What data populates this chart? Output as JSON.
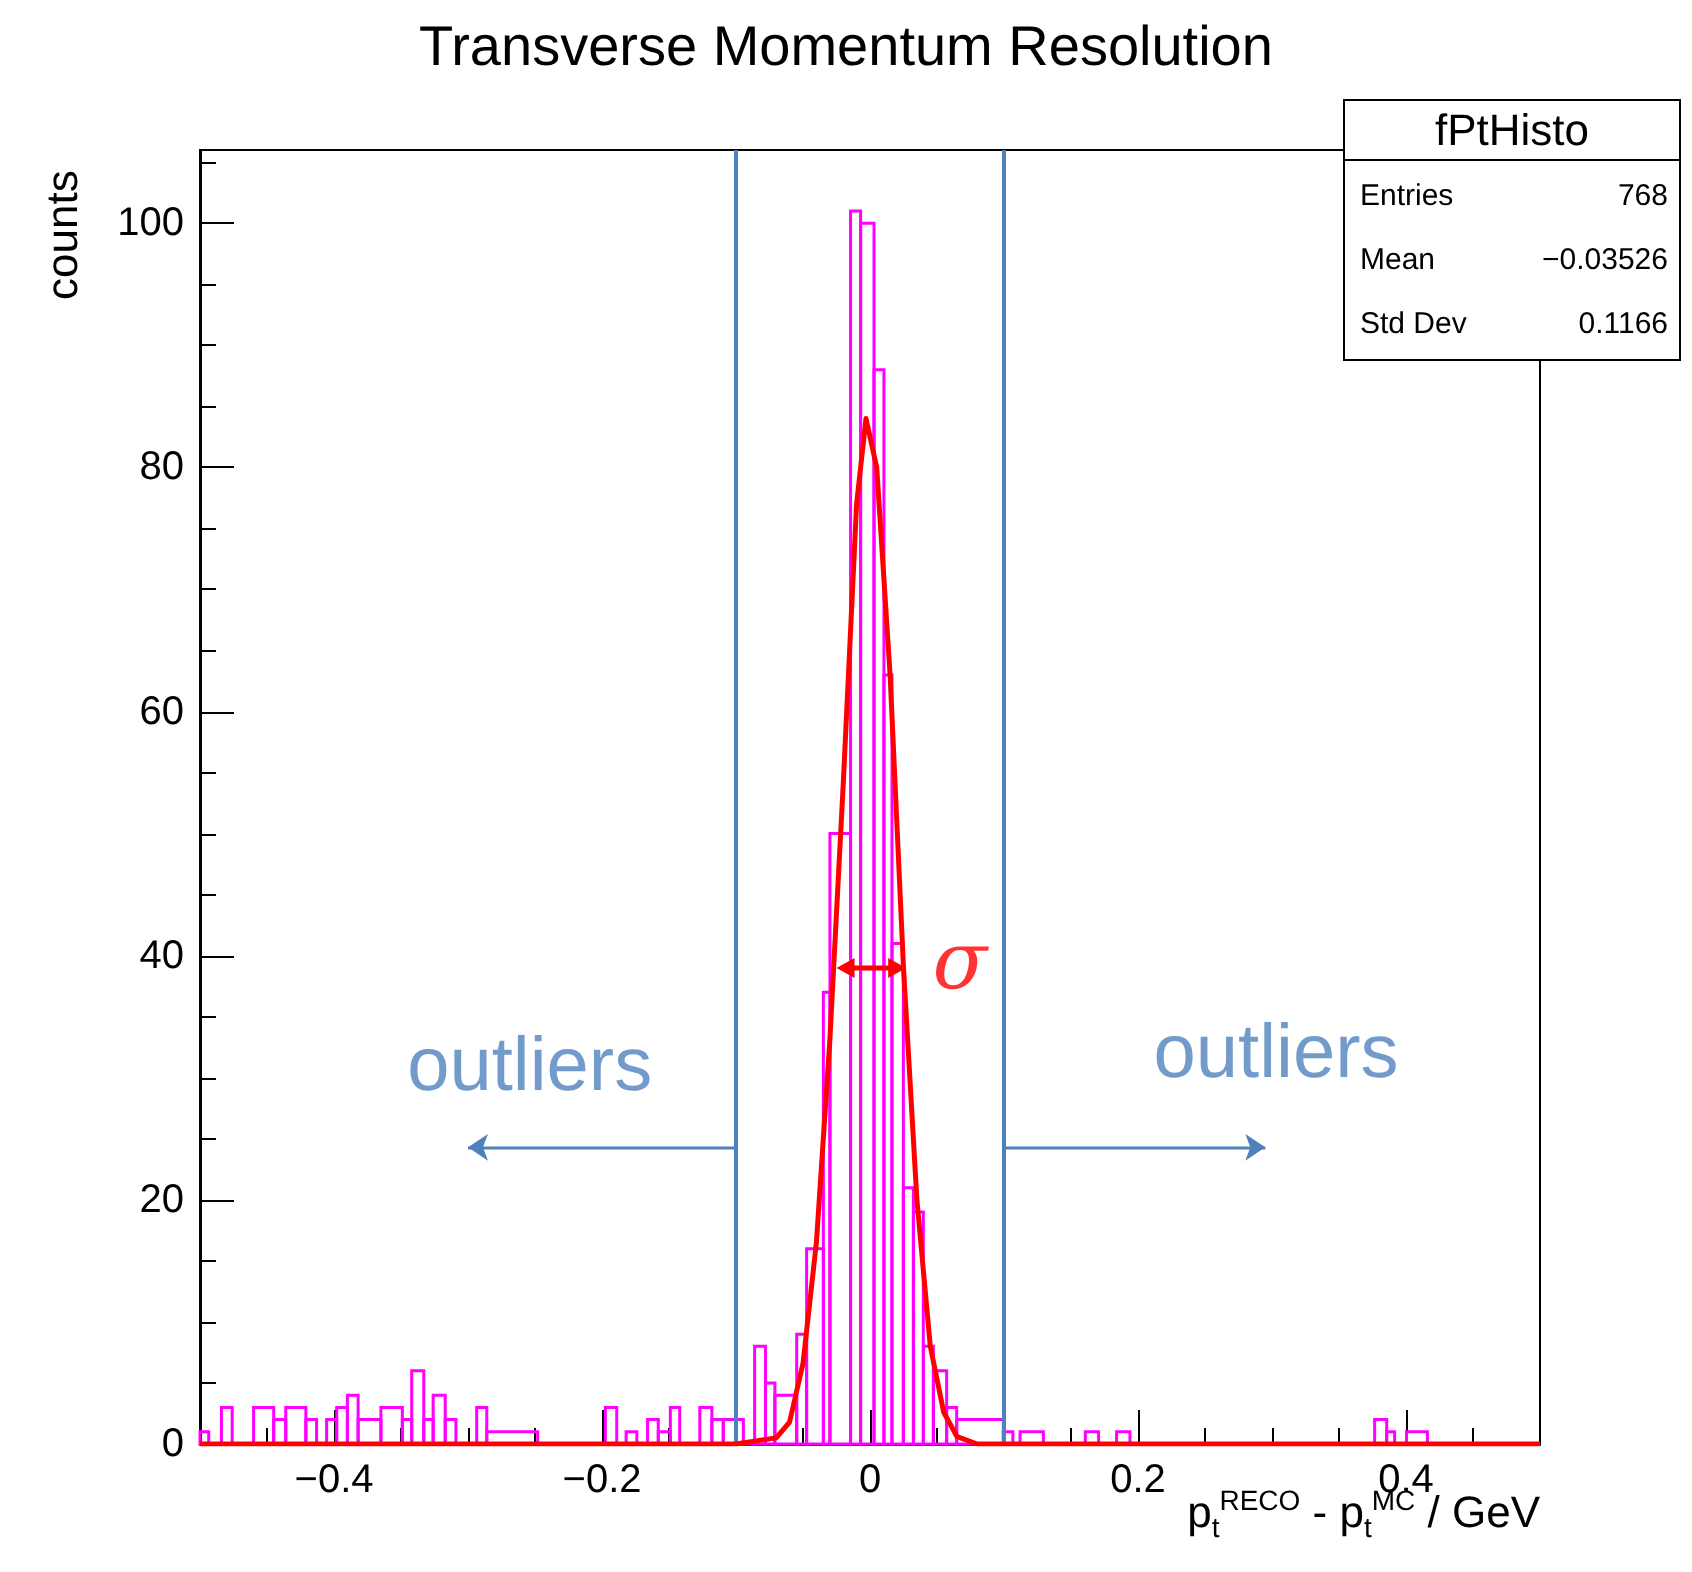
{
  "chart_data": {
    "type": "histogram",
    "title": "Transverse Momentum Resolution",
    "xlabel": "p$_{t}$$^{RECO}$ - p$_{t}$$^{MC}$ / GeV",
    "ylabel": "counts",
    "bins": [
      -0.5,
      -0.4935,
      -0.484,
      -0.476,
      -0.46,
      -0.445,
      -0.436,
      -0.421,
      -0.413,
      -0.4055,
      -0.398,
      -0.39,
      -0.382,
      -0.365,
      -0.349,
      -0.342,
      -0.333,
      -0.326,
      -0.317,
      -0.309,
      -0.2935,
      -0.286,
      -0.248,
      -0.1975,
      -0.189,
      -0.182,
      -0.174,
      -0.166,
      -0.158,
      -0.149,
      -0.142,
      -0.127,
      -0.118,
      -0.1095,
      -0.0945,
      -0.0861,
      -0.078,
      -0.071,
      -0.0547,
      -0.0473,
      -0.0348,
      -0.0299,
      -0.0145,
      -0.007,
      0.003,
      0.0104,
      0.0164,
      0.0249,
      0.0324,
      0.0398,
      0.0473,
      0.0572,
      0.0647,
      0.0995,
      0.1066,
      0.112,
      0.1294,
      0.1607,
      0.1706,
      0.184,
      0.194,
      0.3766,
      0.3856,
      0.3915,
      0.4004,
      0.416,
      0.5
    ],
    "series": [
      {
        "color": "#ff00ff",
        "values": [
          1,
          0,
          3,
          0,
          3,
          2,
          3,
          2,
          0,
          2,
          3,
          4,
          2,
          3,
          2,
          6,
          2,
          4,
          2,
          0,
          3,
          1,
          0,
          3,
          0,
          1,
          0,
          2,
          1,
          3,
          0,
          3,
          2,
          2,
          0,
          8,
          5,
          4,
          9,
          16,
          37,
          50,
          101,
          100,
          88,
          63,
          41,
          21,
          19,
          8,
          6,
          3,
          2,
          1,
          0,
          1,
          0,
          1,
          0,
          1,
          0,
          2,
          1,
          0,
          1,
          0
        ]
      },
      {
        "type": "line",
        "color": "#ff0000",
        "x": [
          -0.5,
          -0.1,
          -0.07,
          -0.06,
          -0.05,
          -0.04,
          -0.03,
          -0.02,
          -0.01,
          -0.003,
          0.005,
          0.015,
          0.025,
          0.035,
          0.045,
          0.055,
          0.065,
          0.08,
          0.5
        ],
        "values": [
          0,
          0,
          0.5,
          1.8,
          6.6,
          16.5,
          33,
          54,
          77,
          84,
          80,
          63,
          39,
          20,
          8,
          2.6,
          0.6,
          0,
          0
        ]
      }
    ],
    "xlim": [
      -0.5,
      0.5
    ],
    "xticks": [
      {
        "value": -0.4,
        "label": "−0.4"
      },
      {
        "value": -0.2,
        "label": "−0.2"
      },
      0,
      0.2,
      0.4
    ],
    "ylim": [
      0,
      106
    ],
    "yticks": [
      0,
      20,
      40,
      60,
      80,
      100
    ],
    "ref_lines": [
      {
        "axis": "x",
        "value": -0.1,
        "color": "#4f81bd"
      },
      {
        "axis": "x",
        "value": 0.1,
        "color": "#4f81bd"
      }
    ],
    "annotations": [
      "outliers",
      "outliers",
      "σ",
      "fPtHisto",
      "Entries",
      "768",
      "Mean",
      "−0.03526",
      "Std Dev",
      "0.1166"
    ],
    "grid": false,
    "marker": "none"
  }
}
